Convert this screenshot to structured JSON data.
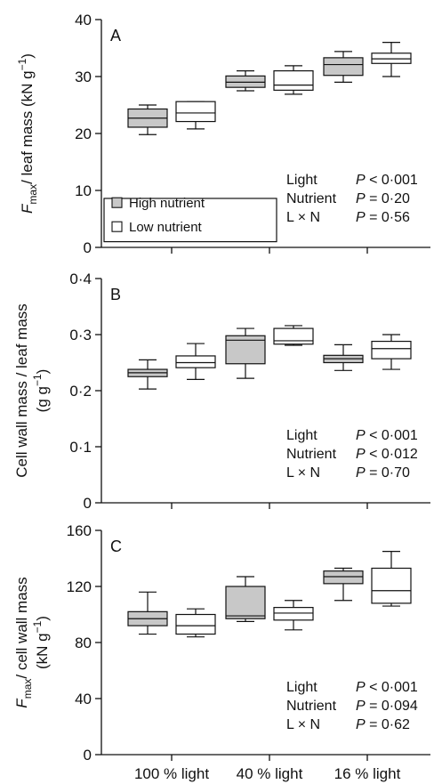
{
  "colors": {
    "high": "#c8c8c8",
    "low": "#ffffff",
    "line": "#111111"
  },
  "legend": [
    {
      "key": "high",
      "label": "High nutrient"
    },
    {
      "key": "low",
      "label": "Low nutrient"
    }
  ],
  "chart_data": [
    {
      "type": "box",
      "letter": "A",
      "ylabel": "F_max/ leaf mass (kN g^-1)",
      "ylabel_lines": [
        {
          "parts": [
            {
              "t": "F",
              "style": "italic"
            },
            {
              "t": "max",
              "style": "sub"
            },
            {
              "t": "/ leaf mass (kN g",
              "style": "normal"
            },
            {
              "t": "−1",
              "style": "sup"
            },
            {
              "t": ")",
              "style": "normal"
            }
          ]
        }
      ],
      "ylim": [
        0,
        40
      ],
      "yticks": [
        {
          "v": 0,
          "label": "0"
        },
        {
          "v": 10,
          "label": "10"
        },
        {
          "v": 20,
          "label": "20"
        },
        {
          "v": 30,
          "label": "30"
        },
        {
          "v": 40,
          "label": "40"
        }
      ],
      "show_legend": true,
      "stats": [
        {
          "term": "Light",
          "value": "P < 0·001"
        },
        {
          "term": "Nutrient",
          "value": "P = 0·20"
        },
        {
          "term": "L × N",
          "value": "P = 0·56"
        }
      ],
      "series": [
        {
          "name": "High nutrient",
          "key": "high",
          "boxes": [
            {
              "min": 19.8,
              "q1": 21.1,
              "median": 22.7,
              "q3": 24.3,
              "max": 25.0
            },
            {
              "min": 27.5,
              "q1": 28.1,
              "median": 29.0,
              "q3": 30.1,
              "max": 31.0
            },
            {
              "min": 29.0,
              "q1": 30.2,
              "median": 32.1,
              "q3": 33.3,
              "max": 34.4
            }
          ]
        },
        {
          "name": "Low nutrient",
          "key": "low",
          "boxes": [
            {
              "min": 20.8,
              "q1": 22.1,
              "median": 23.6,
              "q3": 25.6,
              "max": 25.6
            },
            {
              "min": 26.9,
              "q1": 27.6,
              "median": 28.5,
              "q3": 31.0,
              "max": 31.9
            },
            {
              "min": 30.0,
              "q1": 32.3,
              "median": 33.1,
              "q3": 34.1,
              "max": 36.0
            }
          ]
        }
      ]
    },
    {
      "type": "box",
      "letter": "B",
      "ylabel": "Cell wall mass / leaf mass (g g^-1)",
      "ylabel_lines": [
        {
          "parts": [
            {
              "t": "Cell wall mass / leaf mass",
              "style": "normal"
            }
          ]
        },
        {
          "parts": [
            {
              "t": "(g g",
              "style": "normal"
            },
            {
              "t": "−1",
              "style": "sup"
            },
            {
              "t": ")",
              "style": "normal"
            }
          ]
        }
      ],
      "ylim": [
        0,
        0.4
      ],
      "yticks": [
        {
          "v": 0,
          "label": "0"
        },
        {
          "v": 0.1,
          "label": "0·1"
        },
        {
          "v": 0.2,
          "label": "0·2"
        },
        {
          "v": 0.3,
          "label": "0·3"
        },
        {
          "v": 0.4,
          "label": "0·4"
        }
      ],
      "show_legend": false,
      "stats": [
        {
          "term": "Light",
          "value": "P < 0·001"
        },
        {
          "term": "Nutrient",
          "value": "P < 0·012"
        },
        {
          "term": "L × N",
          "value": "P = 0·70"
        }
      ],
      "series": [
        {
          "name": "High nutrient",
          "key": "high",
          "boxes": [
            {
              "min": 0.203,
              "q1": 0.225,
              "median": 0.232,
              "q3": 0.238,
              "max": 0.255
            },
            {
              "min": 0.222,
              "q1": 0.248,
              "median": 0.29,
              "q3": 0.298,
              "max": 0.311
            },
            {
              "min": 0.236,
              "q1": 0.25,
              "median": 0.257,
              "q3": 0.263,
              "max": 0.282
            }
          ]
        },
        {
          "name": "Low nutrient",
          "key": "low",
          "boxes": [
            {
              "min": 0.22,
              "q1": 0.241,
              "median": 0.25,
              "q3": 0.262,
              "max": 0.284
            },
            {
              "min": 0.281,
              "q1": 0.283,
              "median": 0.289,
              "q3": 0.311,
              "max": 0.316
            },
            {
              "min": 0.238,
              "q1": 0.257,
              "median": 0.275,
              "q3": 0.288,
              "max": 0.3
            }
          ]
        }
      ]
    },
    {
      "type": "box",
      "letter": "C",
      "ylabel": "F_max/ cell wall mass (kN g^-1)",
      "ylabel_lines": [
        {
          "parts": [
            {
              "t": "F",
              "style": "italic"
            },
            {
              "t": "max",
              "style": "sub"
            },
            {
              "t": "/ cell wall mass",
              "style": "normal"
            }
          ]
        },
        {
          "parts": [
            {
              "t": "(kN g",
              "style": "normal"
            },
            {
              "t": "−1",
              "style": "sup"
            },
            {
              "t": ")",
              "style": "normal"
            }
          ]
        }
      ],
      "ylim": [
        0,
        160
      ],
      "yticks": [
        {
          "v": 0,
          "label": "0"
        },
        {
          "v": 40,
          "label": "40"
        },
        {
          "v": 80,
          "label": "80"
        },
        {
          "v": 120,
          "label": "120"
        },
        {
          "v": 160,
          "label": "160"
        }
      ],
      "show_legend": false,
      "stats": [
        {
          "term": "Light",
          "value": "P < 0·001"
        },
        {
          "term": "Nutrient",
          "value": "P = 0·094"
        },
        {
          "term": "L × N",
          "value": "P = 0·62"
        }
      ],
      "series": [
        {
          "name": "High nutrient",
          "key": "high",
          "boxes": [
            {
              "min": 86,
              "q1": 92,
              "median": 97,
              "q3": 102,
              "max": 116
            },
            {
              "min": 95,
              "q1": 97,
              "median": 99,
              "q3": 120,
              "max": 127
            },
            {
              "min": 110,
              "q1": 122,
              "median": 127,
              "q3": 131,
              "max": 133
            }
          ]
        },
        {
          "name": "Low nutrient",
          "key": "low",
          "boxes": [
            {
              "min": 84,
              "q1": 86,
              "median": 92,
              "q3": 100,
              "max": 104
            },
            {
              "min": 89,
              "q1": 96,
              "median": 101,
              "q3": 105,
              "max": 110
            },
            {
              "min": 106,
              "q1": 108,
              "median": 117,
              "q3": 133,
              "max": 145
            }
          ]
        }
      ],
      "categories": [
        "100 % light",
        "40 % light",
        "16 % light"
      ]
    }
  ]
}
